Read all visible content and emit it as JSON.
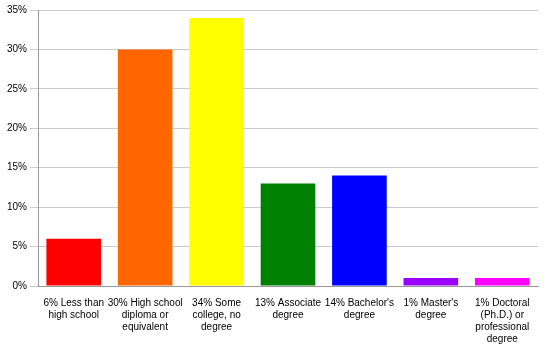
{
  "chart_data": {
    "type": "bar",
    "categories": [
      "6% Less than high school",
      "30% High school diploma or equivalent",
      "34% Some college, no degree",
      "13% Associate degree",
      "14% Bachelor's degree",
      "1% Master's degree",
      "1% Doctoral (Ph.D.) or professional degree"
    ],
    "values": [
      6,
      30,
      34,
      13,
      14,
      1,
      1
    ],
    "colors": [
      "#ff0000",
      "#ff6600",
      "#ffff00",
      "#008000",
      "#0000ff",
      "#9900ff",
      "#ff00ff"
    ],
    "ylim": [
      0,
      35
    ],
    "yticks": [
      {
        "value": 0,
        "label": "0%"
      },
      {
        "value": 5,
        "label": "5%"
      },
      {
        "value": 10,
        "label": "10%"
      },
      {
        "value": 15,
        "label": "15%"
      },
      {
        "value": 20,
        "label": "20%"
      },
      {
        "value": 25,
        "label": "25%"
      },
      {
        "value": 30,
        "label": "30%"
      },
      {
        "value": 35,
        "label": "35%"
      }
    ],
    "grid": true
  }
}
